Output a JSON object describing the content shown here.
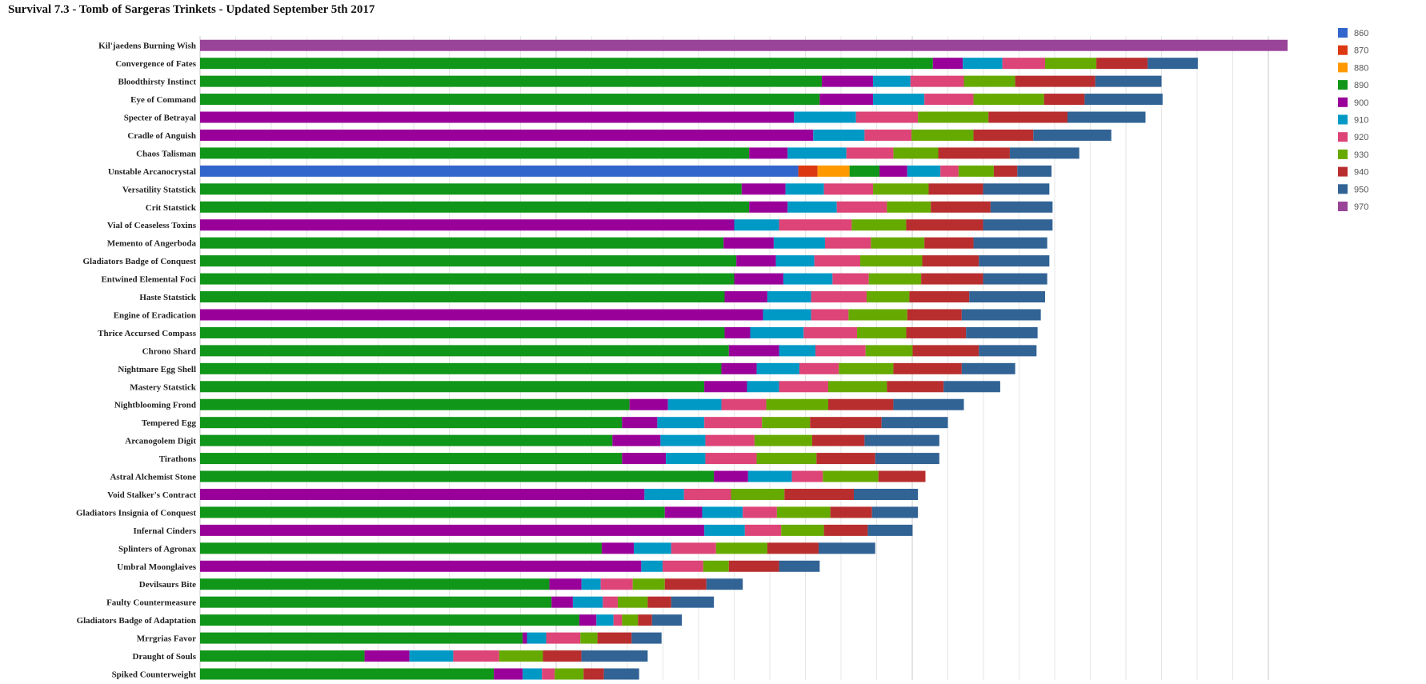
{
  "chart_data": {
    "type": "bar",
    "orientation": "horizontal",
    "stacked": true,
    "title": "Survival 7.3 - Tomb of Sargeras Trinkets - Updated September 5th 2017",
    "xlabel": "",
    "ylabel": "",
    "xlim": [
      0,
      1000
    ],
    "grid": true,
    "legend_position": "top-right",
    "categories": [
      "Kil'jaedens Burning Wish",
      "Convergence of Fates",
      "Bloodthirsty Instinct",
      "Eye of Command",
      "Specter of Betrayal",
      "Cradle of Anguish",
      "Chaos Talisman",
      "Unstable Arcanocrystal",
      "Versatility Statstick",
      "Crit Statstick",
      "Vial of Ceaseless Toxins",
      "Memento of Angerboda",
      "Gladiators Badge of Conquest",
      "Entwined Elemental Foci",
      "Haste Statstick",
      "Engine of Eradication",
      "Thrice Accursed Compass",
      "Chrono Shard",
      "Nightmare Egg Shell",
      "Mastery Statstick",
      "Nightblooming Frond",
      "Tempered Egg",
      "Arcanogolem Digit",
      "Tirathons",
      "Astral Alchemist Stone",
      "Void Stalker's Contract",
      "Gladiators Insignia of Conquest",
      "Infernal Cinders",
      "Splinters of Agronax",
      "Umbral Moonglaives",
      "Devilsaurs Bite",
      "Faulty Countermeasure",
      "Gladiators Badge of Adaptation",
      "Mrrgrias Favor",
      "Draught of Souls",
      "Spiked Counterweight"
    ],
    "series": [
      {
        "name": "860",
        "color": "#3366cc",
        "values": [
          0,
          0,
          0,
          0,
          0,
          0,
          0,
          560,
          0,
          0,
          0,
          0,
          0,
          0,
          0,
          0,
          0,
          0,
          0,
          0,
          0,
          0,
          0,
          0,
          0,
          0,
          0,
          0,
          0,
          0,
          0,
          0,
          0,
          0,
          0,
          0
        ]
      },
      {
        "name": "870",
        "color": "#dc3912",
        "values": [
          0,
          0,
          0,
          0,
          0,
          0,
          0,
          18,
          0,
          0,
          0,
          0,
          0,
          0,
          0,
          0,
          0,
          0,
          0,
          0,
          0,
          0,
          0,
          0,
          0,
          0,
          0,
          0,
          0,
          0,
          0,
          0,
          0,
          0,
          0,
          0
        ]
      },
      {
        "name": "880",
        "color": "#ff9900",
        "values": [
          0,
          0,
          0,
          0,
          0,
          0,
          0,
          30,
          0,
          0,
          0,
          0,
          0,
          0,
          0,
          0,
          0,
          0,
          0,
          0,
          0,
          0,
          0,
          0,
          0,
          0,
          0,
          0,
          0,
          0,
          0,
          0,
          0,
          0,
          0,
          0
        ]
      },
      {
        "name": "890",
        "color": "#109618",
        "values": [
          0,
          686,
          582,
          580,
          0,
          0,
          514,
          28,
          507,
          514,
          0,
          490,
          502,
          500,
          491,
          0,
          491,
          495,
          488,
          472,
          402,
          395,
          386,
          395,
          481,
          0,
          435,
          0,
          376,
          0,
          327,
          329,
          355,
          302,
          154,
          275
        ]
      },
      {
        "name": "900",
        "color": "#990099",
        "values": [
          0,
          28,
          48,
          50,
          556,
          574,
          36,
          26,
          41,
          36,
          500,
          47,
          37,
          46,
          40,
          527,
          24,
          47,
          33,
          40,
          36,
          33,
          45,
          41,
          32,
          416,
          35,
          472,
          30,
          413,
          30,
          20,
          16,
          4,
          42,
          27
        ]
      },
      {
        "name": "910",
        "color": "#0099c6",
        "values": [
          0,
          37,
          35,
          48,
          58,
          48,
          55,
          31,
          36,
          46,
          42,
          48,
          36,
          46,
          41,
          45,
          50,
          34,
          40,
          30,
          50,
          44,
          42,
          37,
          41,
          37,
          38,
          38,
          35,
          20,
          18,
          28,
          16,
          18,
          41,
          18
        ]
      },
      {
        "name": "920",
        "color": "#dd4477",
        "values": [
          0,
          40,
          50,
          46,
          58,
          44,
          44,
          17,
          46,
          47,
          68,
          43,
          43,
          34,
          52,
          35,
          50,
          47,
          37,
          46,
          42,
          54,
          46,
          48,
          29,
          44,
          32,
          34,
          42,
          38,
          30,
          14,
          8,
          32,
          43,
          12
        ]
      },
      {
        "name": "930",
        "color": "#66aa00",
        "values": [
          0,
          48,
          48,
          66,
          66,
          58,
          42,
          33,
          52,
          41,
          51,
          50,
          58,
          49,
          40,
          55,
          46,
          44,
          51,
          55,
          58,
          45,
          54,
          56,
          52,
          50,
          50,
          40,
          48,
          24,
          30,
          28,
          15,
          16,
          41,
          27
        ]
      },
      {
        "name": "940",
        "color": "#b82e2e",
        "values": [
          0,
          48,
          75,
          38,
          74,
          56,
          67,
          22,
          51,
          56,
          72,
          46,
          53,
          58,
          56,
          51,
          56,
          62,
          64,
          53,
          61,
          67,
          49,
          55,
          44,
          65,
          39,
          41,
          48,
          47,
          39,
          22,
          13,
          32,
          36,
          19
        ]
      },
      {
        "name": "950",
        "color": "#316395",
        "values": [
          0,
          47,
          62,
          73,
          73,
          73,
          65,
          32,
          62,
          58,
          65,
          69,
          66,
          60,
          71,
          74,
          67,
          54,
          50,
          53,
          66,
          62,
          70,
          60,
          0,
          60,
          43,
          42,
          53,
          38,
          34,
          40,
          28,
          28,
          62,
          33
        ]
      },
      {
        "name": "970",
        "color": "#994499",
        "values": [
          1018,
          0,
          0,
          0,
          0,
          0,
          0,
          0,
          0,
          0,
          0,
          0,
          0,
          0,
          0,
          0,
          0,
          0,
          0,
          0,
          0,
          0,
          0,
          0,
          0,
          0,
          0,
          0,
          0,
          0,
          0,
          0,
          0,
          0,
          0,
          0
        ]
      }
    ]
  }
}
